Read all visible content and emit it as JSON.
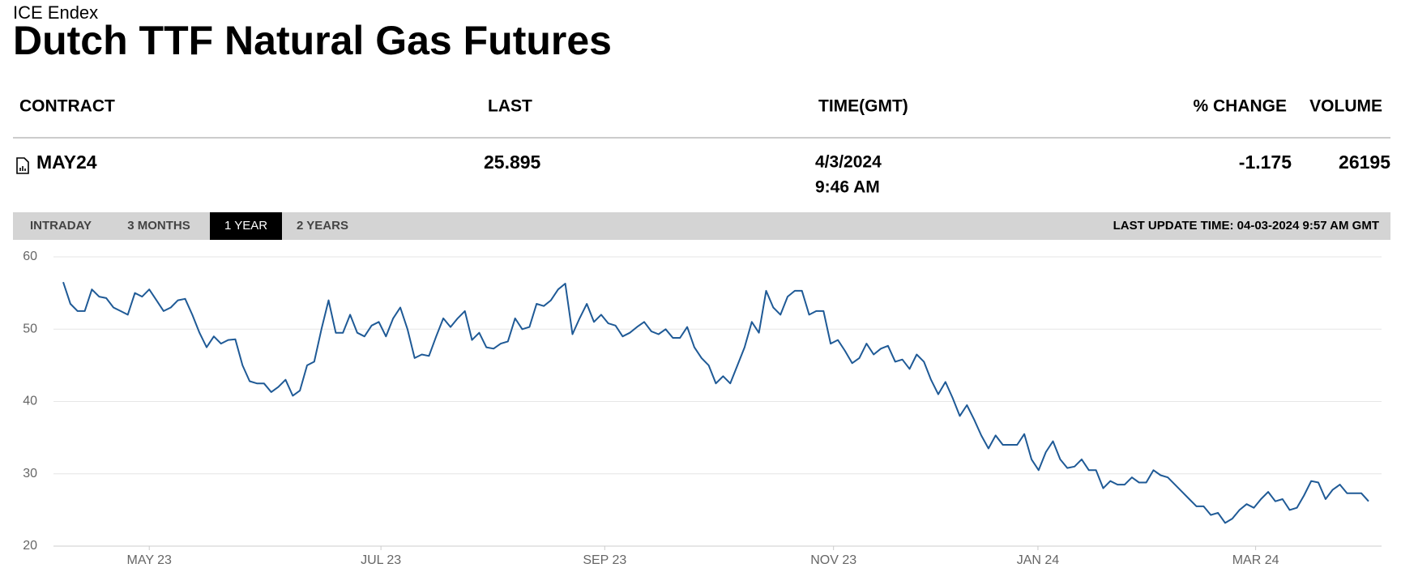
{
  "header": {
    "source": "ICE Endex",
    "title": "Dutch TTF Natural Gas Futures"
  },
  "table": {
    "columns": [
      "CONTRACT",
      "LAST",
      "TIME(GMT)",
      "% CHANGE",
      "VOLUME"
    ],
    "row": {
      "contract": "MAY24",
      "last": "25.895",
      "date": "4/3/2024",
      "time": "9:46 AM",
      "change": "-1.175",
      "volume": "26195"
    }
  },
  "tabs": {
    "items": [
      "INTRADAY",
      "3 MONTHS",
      "1 YEAR",
      "2 YEARS"
    ],
    "active": 2
  },
  "last_update": "LAST UPDATE TIME: 04-03-2024 9:57 AM GMT",
  "chart_data": {
    "type": "line",
    "color": "#1f5a96",
    "grid": true,
    "ylim": [
      20,
      60
    ],
    "yticks": [
      20,
      30,
      40,
      50,
      60
    ],
    "xlim": [
      0,
      182
    ],
    "xticks": [
      {
        "value": 12,
        "label": "MAY 23"
      },
      {
        "value": 44.3,
        "label": "JUL 23"
      },
      {
        "value": 75.5,
        "label": "SEP 23"
      },
      {
        "value": 107.4,
        "label": "NOV 23"
      },
      {
        "value": 135.9,
        "label": "JAN 24"
      },
      {
        "value": 166.25,
        "label": "MAR 24"
      }
    ],
    "values": [
      56.5,
      53.5,
      52.5,
      52.5,
      55.5,
      54.5,
      54.3,
      53,
      52.5,
      52,
      55,
      54.5,
      55.5,
      54,
      52.5,
      53,
      54,
      54.2,
      52,
      49.5,
      47.5,
      49,
      48,
      48.5,
      48.6,
      45,
      42.8,
      42.5,
      42.5,
      41.3,
      42,
      43,
      40.8,
      41.5,
      45,
      45.5,
      50,
      54,
      49.5,
      49.5,
      52,
      49.5,
      49,
      50.5,
      51,
      49,
      51.5,
      53,
      50,
      46,
      46.5,
      46.3,
      49,
      51.5,
      50.3,
      51.5,
      52.5,
      48.5,
      49.5,
      47.5,
      47.3,
      48,
      48.3,
      51.5,
      50,
      50.3,
      53.5,
      53.2,
      54,
      55.5,
      56.3,
      49.3,
      51.5,
      53.5,
      51,
      52,
      50.8,
      50.5,
      49,
      49.5,
      50.3,
      51,
      49.7,
      49.3,
      50,
      48.8,
      48.8,
      50.3,
      47.5,
      46,
      45,
      42.5,
      43.5,
      42.5,
      45,
      47.5,
      51,
      49.5,
      55.3,
      53,
      52,
      54.5,
      55.3,
      55.3,
      52,
      52.5,
      52.5,
      48,
      48.5,
      47,
      45.3,
      46,
      48,
      46.5,
      47.3,
      47.7,
      45.5,
      45.8,
      44.5,
      46.5,
      45.5,
      43,
      41,
      42.7,
      40.5,
      38,
      39.5,
      37.5,
      35.3,
      33.5,
      35.3,
      34,
      34,
      34,
      35.5,
      32,
      30.5,
      33,
      34.5,
      32,
      30.8,
      31,
      32,
      30.5,
      30.5,
      28,
      29,
      28.5,
      28.5,
      29.5,
      28.8,
      28.8,
      30.5,
      29.8,
      29.5,
      28.5,
      27.5,
      26.5,
      25.5,
      25.5,
      24.3,
      24.6,
      23.2,
      23.8,
      25,
      25.8,
      25.3,
      26.5,
      27.5,
      26.2,
      26.5,
      25,
      25.3,
      27,
      29,
      28.8,
      26.5,
      27.8,
      28.5,
      27.3,
      27.3,
      27.3,
      26.2
    ]
  }
}
